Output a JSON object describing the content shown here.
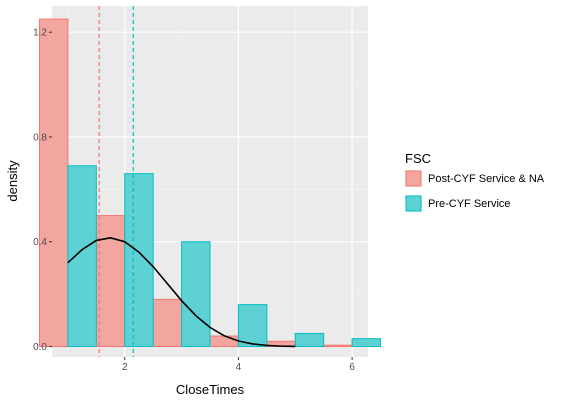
{
  "chart_data": {
    "type": "bar",
    "title": "",
    "xlabel": "CloseTimes",
    "ylabel": "density",
    "xlim": [
      0.72,
      6.28
    ],
    "ylim": [
      -0.04,
      1.3
    ],
    "x_ticks": [
      2,
      4,
      6
    ],
    "x_tick_labels": [
      "2",
      "4",
      "6"
    ],
    "y_ticks": [
      0.0,
      0.4,
      0.8,
      1.2
    ],
    "y_tick_labels": [
      "0.0",
      "0.4",
      "0.8",
      "1.2"
    ],
    "grid": true,
    "legend": {
      "title": "FSC",
      "placement": "right"
    },
    "bin_centers": [
      1,
      2,
      3,
      4,
      5,
      6
    ],
    "bar_width": 0.5,
    "series": [
      {
        "name": "Post-CYF Service & NA",
        "fill": "#F8766D",
        "values": [
          1.25,
          0.5,
          0.18,
          0.04,
          0.02,
          0.005
        ],
        "mean_line": 1.55
      },
      {
        "name": "Pre-CYF Service",
        "fill": "#00BFC4",
        "values": [
          0.69,
          0.66,
          0.4,
          0.16,
          0.05,
          0.03
        ],
        "mean_line": 2.15
      }
    ],
    "density_curve": {
      "color": "#000000",
      "x": [
        1.0,
        1.25,
        1.5,
        1.75,
        2.0,
        2.25,
        2.5,
        2.75,
        3.0,
        3.25,
        3.5,
        3.75,
        4.0,
        4.25,
        4.5,
        4.75,
        5.0
      ],
      "y": [
        0.32,
        0.37,
        0.405,
        0.415,
        0.4,
        0.36,
        0.305,
        0.24,
        0.175,
        0.118,
        0.073,
        0.041,
        0.021,
        0.01,
        0.004,
        0.0015,
        0.0005
      ]
    }
  }
}
